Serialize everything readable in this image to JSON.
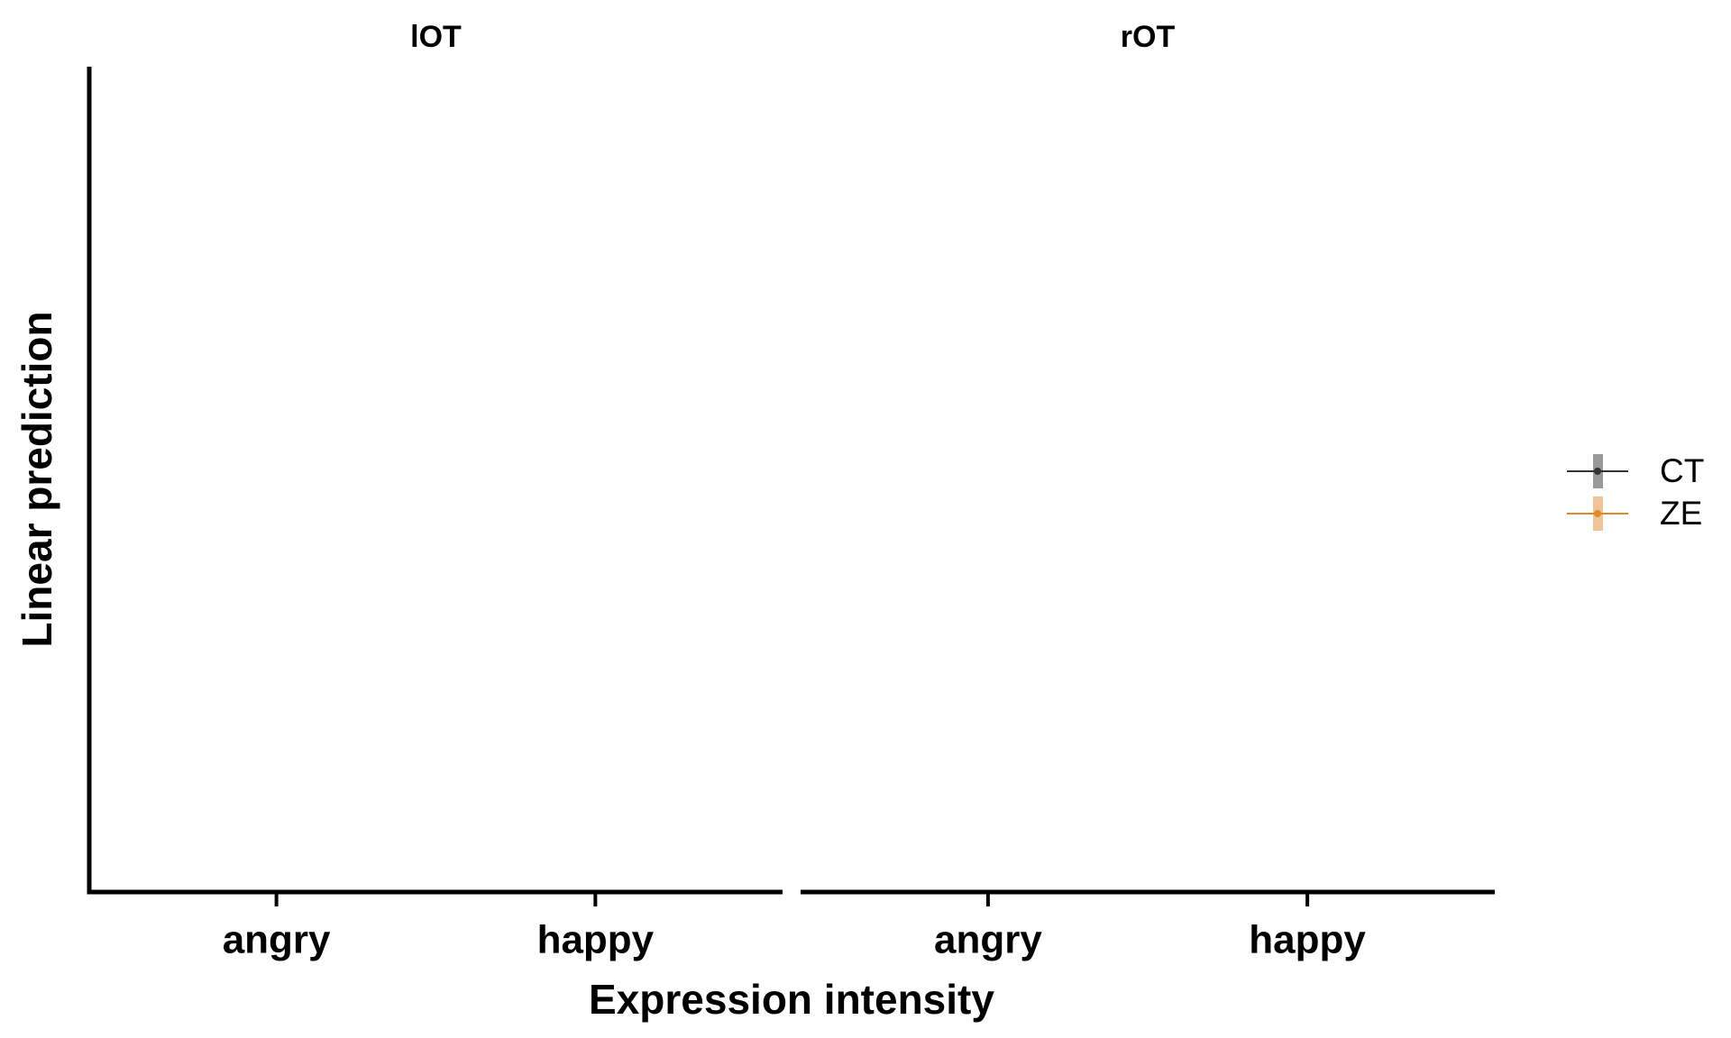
{
  "chart_data": [
    {
      "type": "line",
      "title": "lOT",
      "xlabel": "Expression intensity",
      "ylabel": "Linear prediction",
      "categories": [
        "angry",
        "happy"
      ],
      "series": [
        {
          "name": "CT",
          "color": "#333333",
          "values": [
            null,
            null
          ]
        },
        {
          "name": "ZE",
          "color": "#e08a2e",
          "values": [
            null,
            null
          ]
        }
      ]
    },
    {
      "type": "line",
      "title": "rOT",
      "categories": [
        "angry",
        "happy"
      ],
      "series": [
        {
          "name": "CT",
          "color": "#333333",
          "values": [
            null,
            null
          ]
        },
        {
          "name": "ZE",
          "color": "#e08a2e",
          "values": [
            null,
            null
          ]
        }
      ]
    }
  ]
}
